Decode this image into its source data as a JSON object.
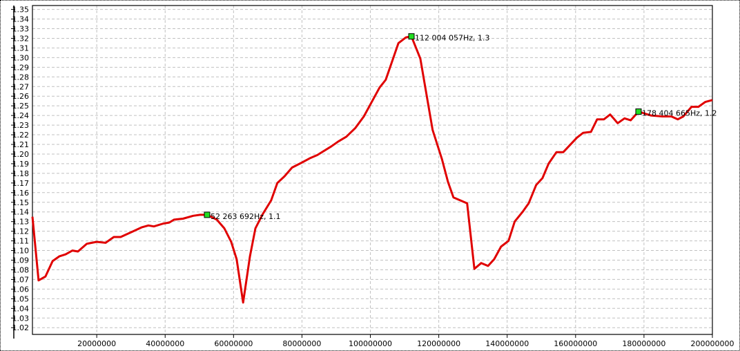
{
  "chart_data": {
    "type": "line",
    "title": "",
    "xlabel": "",
    "ylabel": "",
    "xlim": [
      1200000,
      200000000
    ],
    "ylim": [
      1.013,
      1.354
    ],
    "grid": true,
    "line_color": "#e00000",
    "marker_color": "#22dd22",
    "x_ticks": [
      20000000,
      40000000,
      60000000,
      80000000,
      100000000,
      120000000,
      140000000,
      160000000,
      180000000,
      200000000
    ],
    "x_tick_labels": [
      "20000000",
      "40000000",
      "60000000",
      "80000000",
      "100000000",
      "120000000",
      "140000000",
      "160000000",
      "180000000",
      "200000000"
    ],
    "y_ticks": [
      1.02,
      1.03,
      1.04,
      1.05,
      1.06,
      1.07,
      1.08,
      1.09,
      1.1,
      1.11,
      1.12,
      1.13,
      1.14,
      1.15,
      1.16,
      1.17,
      1.18,
      1.19,
      1.2,
      1.21,
      1.22,
      1.23,
      1.24,
      1.25,
      1.26,
      1.27,
      1.28,
      1.29,
      1.3,
      1.31,
      1.32,
      1.33,
      1.34,
      1.35
    ],
    "y_tick_labels": [
      "1.02",
      "1.03",
      "1.04",
      "1.05",
      "1.06",
      "1.07",
      "1.08",
      "1.09",
      "1.10",
      "1.11",
      "1.12",
      "1.13",
      "1.14",
      "1.15",
      "1.16",
      "1.17",
      "1.18",
      "1.19",
      "1.20",
      "1.21",
      "1.22",
      "1.23",
      "1.24",
      "1.25",
      "1.26",
      "1.27",
      "1.28",
      "1.29",
      "1.30",
      "1.31",
      "1.32",
      "1.33",
      "1.34",
      "1.35"
    ],
    "series": [
      {
        "x": [
          1200000,
          3000000,
          5000000,
          7100000,
          9100000,
          10900000,
          12900000,
          14500000,
          17100000,
          20000000,
          22600000,
          25000000,
          27000000,
          30100000,
          33100000,
          35100000,
          36700000,
          39500000,
          41200000,
          42600000,
          45200000,
          48200000,
          50200000,
          52263692,
          55100000,
          57300000,
          59300000,
          60900000,
          62800000,
          64800000,
          66400000,
          68400000,
          71000000,
          72800000,
          74900000,
          77100000,
          79900000,
          82500000,
          84500000,
          88600000,
          90600000,
          93000000,
          95600000,
          98100000,
          100700000,
          102700000,
          104500000,
          108200000,
          110400000,
          112004057,
          114600000,
          118200000,
          120900000,
          122700000,
          124300000,
          128300000,
          130400000,
          132400000,
          134400000,
          136200000,
          138200000,
          140400000,
          142200000,
          144500000,
          146300000,
          148500000,
          150300000,
          152100000,
          154400000,
          156400000,
          160400000,
          162200000,
          164500000,
          166300000,
          168300000,
          170100000,
          172300000,
          174300000,
          176100000,
          178404665,
          182000000,
          185400000,
          188000000,
          189900000,
          191500000,
          193900000,
          195900000,
          197900000,
          200000000
        ],
        "y": [
          1.135,
          1.069,
          1.073,
          1.089,
          1.094,
          1.096,
          1.1,
          1.099,
          1.107,
          1.109,
          1.108,
          1.114,
          1.114,
          1.119,
          1.124,
          1.126,
          1.125,
          1.128,
          1.129,
          1.132,
          1.133,
          1.136,
          1.137,
          1.137,
          1.132,
          1.123,
          1.109,
          1.091,
          1.046,
          1.094,
          1.123,
          1.137,
          1.152,
          1.17,
          1.177,
          1.186,
          1.191,
          1.196,
          1.199,
          1.208,
          1.213,
          1.218,
          1.227,
          1.239,
          1.256,
          1.269,
          1.277,
          1.315,
          1.321,
          1.322,
          1.299,
          1.225,
          1.195,
          1.171,
          1.155,
          1.149,
          1.081,
          1.087,
          1.084,
          1.091,
          1.104,
          1.11,
          1.13,
          1.14,
          1.149,
          1.168,
          1.175,
          1.19,
          1.202,
          1.202,
          1.217,
          1.222,
          1.223,
          1.236,
          1.236,
          1.241,
          1.232,
          1.237,
          1.235,
          1.244,
          1.24,
          1.239,
          1.239,
          1.236,
          1.239,
          1.249,
          1.249,
          1.254,
          1.256
        ]
      }
    ],
    "markers": [
      {
        "x": 52263692,
        "y": 1.137,
        "label": "52 263 692Hz, 1.1"
      },
      {
        "x": 112004057,
        "y": 1.322,
        "label": "112 004 057Hz, 1.3"
      },
      {
        "x": 178404665,
        "y": 1.244,
        "label": "178 404 665Hz, 1.2"
      }
    ]
  }
}
